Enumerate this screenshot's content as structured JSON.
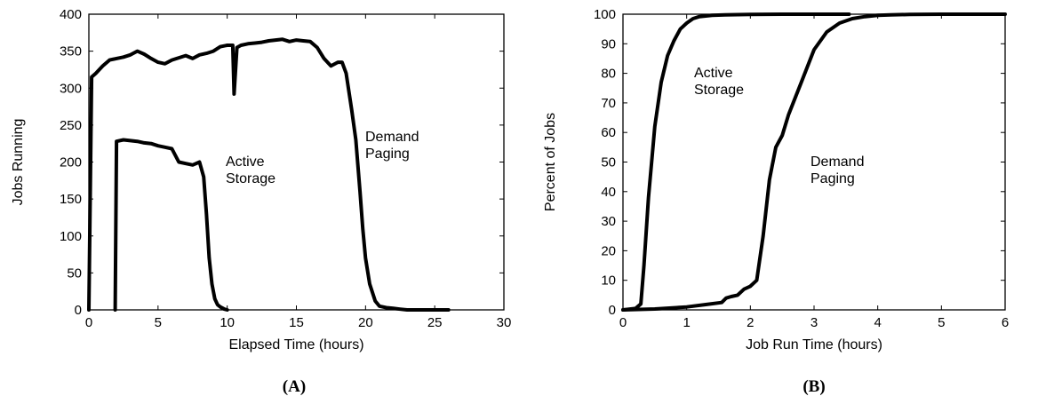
{
  "chart_data": [
    {
      "type": "line",
      "panel_label": "(A)",
      "xlabel": "Elapsed Time (hours)",
      "ylabel": "Jobs Running",
      "xlim": [
        0,
        30
      ],
      "ylim": [
        0,
        400
      ],
      "xticks": [
        0,
        5,
        10,
        15,
        20,
        25,
        30
      ],
      "yticks": [
        0,
        50,
        100,
        150,
        200,
        250,
        300,
        350,
        400
      ],
      "grid": false,
      "legend": "none",
      "series": [
        {
          "label": "Demand\nPaging",
          "x": [
            0,
            0.2,
            0.5,
            1,
            1.5,
            2,
            2.5,
            3,
            3.5,
            4,
            4.5,
            5,
            5.5,
            6,
            6.5,
            7,
            7.5,
            8,
            8.5,
            9,
            9.5,
            10,
            10.4,
            10.5,
            10.7,
            11,
            11.5,
            12,
            12.5,
            13,
            13.5,
            14,
            14.5,
            15,
            15.5,
            16,
            16.5,
            17,
            17.5,
            18,
            18.3,
            18.6,
            19,
            19.3,
            19.6,
            19.8,
            20,
            20.3,
            20.7,
            21,
            21.5,
            22,
            22.5,
            23,
            24,
            25,
            26
          ],
          "y": [
            0,
            315,
            320,
            330,
            338,
            340,
            342,
            345,
            350,
            346,
            340,
            335,
            333,
            338,
            341,
            344,
            340,
            345,
            347,
            350,
            356,
            358,
            358,
            292,
            355,
            358,
            360,
            361,
            362,
            364,
            365,
            366,
            363,
            365,
            364,
            363,
            355,
            340,
            330,
            335,
            335,
            320,
            270,
            230,
            160,
            110,
            70,
            35,
            12,
            5,
            3,
            2,
            1,
            0,
            0,
            0,
            0
          ]
        },
        {
          "label": "Active\nStorage",
          "x": [
            1.9,
            2,
            2.5,
            3,
            3.5,
            4,
            4.5,
            5,
            5.5,
            6,
            6.5,
            7,
            7.5,
            8,
            8.3,
            8.5,
            8.7,
            8.9,
            9.1,
            9.3,
            9.5,
            9.8,
            10
          ],
          "y": [
            0,
            228,
            230,
            229,
            228,
            226,
            225,
            222,
            220,
            218,
            200,
            198,
            196,
            200,
            180,
            130,
            70,
            35,
            15,
            7,
            4,
            1,
            0
          ]
        }
      ],
      "annotations": [
        "Demand\nPaging",
        "Active\nStorage"
      ]
    },
    {
      "type": "line",
      "panel_label": "(B)",
      "xlabel": "Job Run Time (hours)",
      "ylabel": "Percent of Jobs",
      "xlim": [
        0,
        6
      ],
      "ylim": [
        0,
        100
      ],
      "xticks": [
        0,
        1,
        2,
        3,
        4,
        5,
        6
      ],
      "yticks": [
        0,
        10,
        20,
        30,
        40,
        50,
        60,
        70,
        80,
        90,
        100
      ],
      "grid": false,
      "legend": "none",
      "series": [
        {
          "label": "Active\nStorage",
          "x": [
            0,
            0.2,
            0.28,
            0.33,
            0.4,
            0.5,
            0.6,
            0.7,
            0.8,
            0.9,
            1,
            1.1,
            1.2,
            1.4,
            1.6,
            2,
            2.5,
            3,
            3.55
          ],
          "y": [
            0,
            0.5,
            2,
            15,
            38,
            62,
            77,
            86,
            91,
            95,
            97,
            98.5,
            99.2,
            99.6,
            99.8,
            99.9,
            100,
            100,
            100
          ]
        },
        {
          "label": "Demand\nPaging",
          "x": [
            0,
            0.5,
            1,
            1.3,
            1.55,
            1.62,
            1.7,
            1.8,
            1.9,
            2,
            2.1,
            2.2,
            2.3,
            2.4,
            2.5,
            2.6,
            2.8,
            3,
            3.2,
            3.4,
            3.6,
            3.8,
            4,
            4.2,
            4.5,
            5,
            5.5,
            6
          ],
          "y": [
            0,
            0.3,
            1,
            1.8,
            2.5,
            4,
            4.5,
            5,
            7,
            8,
            10,
            25,
            44,
            55,
            59,
            66,
            77,
            88,
            94,
            97,
            98.5,
            99.2,
            99.6,
            99.8,
            99.9,
            100,
            100,
            100
          ]
        }
      ],
      "annotations": [
        "Active\nStorage",
        "Demand\nPaging"
      ]
    }
  ]
}
